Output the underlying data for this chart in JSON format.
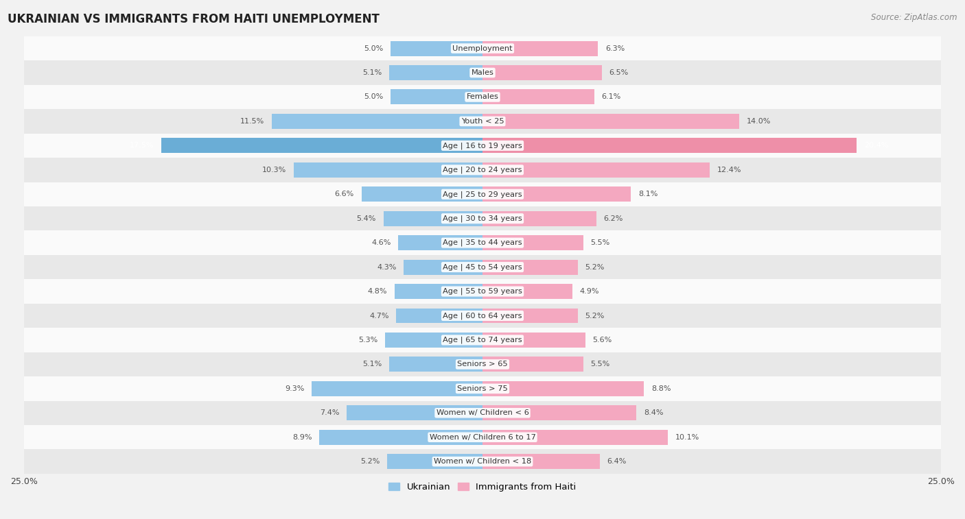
{
  "title": "UKRAINIAN VS IMMIGRANTS FROM HAITI UNEMPLOYMENT",
  "source": "Source: ZipAtlas.com",
  "categories": [
    "Unemployment",
    "Males",
    "Females",
    "Youth < 25",
    "Age | 16 to 19 years",
    "Age | 20 to 24 years",
    "Age | 25 to 29 years",
    "Age | 30 to 34 years",
    "Age | 35 to 44 years",
    "Age | 45 to 54 years",
    "Age | 55 to 59 years",
    "Age | 60 to 64 years",
    "Age | 65 to 74 years",
    "Seniors > 65",
    "Seniors > 75",
    "Women w/ Children < 6",
    "Women w/ Children 6 to 17",
    "Women w/ Children < 18"
  ],
  "ukrainian": [
    5.0,
    5.1,
    5.0,
    11.5,
    17.5,
    10.3,
    6.6,
    5.4,
    4.6,
    4.3,
    4.8,
    4.7,
    5.3,
    5.1,
    9.3,
    7.4,
    8.9,
    5.2
  ],
  "haiti": [
    6.3,
    6.5,
    6.1,
    14.0,
    20.4,
    12.4,
    8.1,
    6.2,
    5.5,
    5.2,
    4.9,
    5.2,
    5.6,
    5.5,
    8.8,
    8.4,
    10.1,
    6.4
  ],
  "ukrainian_color": "#92C5E8",
  "haiti_color": "#F4A8C0",
  "highlight_ukrainian_color": "#6AADD6",
  "highlight_haiti_color": "#EE8FA8",
  "axis_max": 25.0,
  "background_color": "#f2f2f2",
  "row_bg_light": "#fafafa",
  "row_bg_dark": "#e8e8e8",
  "legend_ukrainian": "Ukrainian",
  "legend_haiti": "Immigrants from Haiti",
  "label_color_normal": "#555555",
  "label_color_highlight": "#ffffff"
}
